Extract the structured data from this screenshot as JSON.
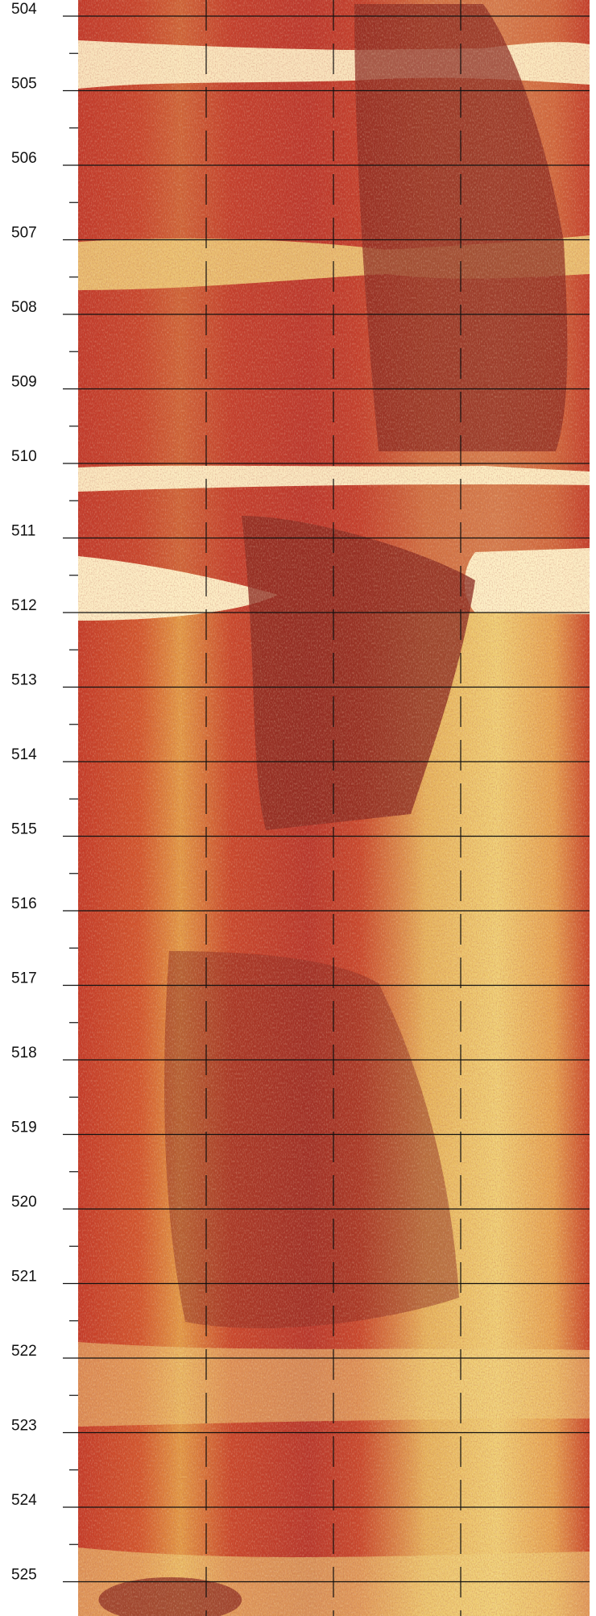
{
  "depth_track": {
    "ticks": [
      {
        "label": "504"
      },
      {
        "label": "505"
      },
      {
        "label": "506"
      },
      {
        "label": "507"
      },
      {
        "label": "508"
      },
      {
        "label": "509"
      },
      {
        "label": "510"
      },
      {
        "label": "511"
      },
      {
        "label": "512"
      },
      {
        "label": "513"
      },
      {
        "label": "514"
      },
      {
        "label": "515"
      },
      {
        "label": "516"
      },
      {
        "label": "517"
      },
      {
        "label": "518"
      },
      {
        "label": "519"
      },
      {
        "label": "520"
      },
      {
        "label": "521"
      },
      {
        "label": "522"
      },
      {
        "label": "523"
      },
      {
        "label": "524"
      },
      {
        "label": "525"
      }
    ]
  },
  "image_log": {
    "colors": {
      "dark": "#8a2a20",
      "red": "#c0392b",
      "orange": "#d9772f",
      "yellow": "#f0d27a",
      "pale": "#fff6cc",
      "grid": "#111111"
    }
  }
}
